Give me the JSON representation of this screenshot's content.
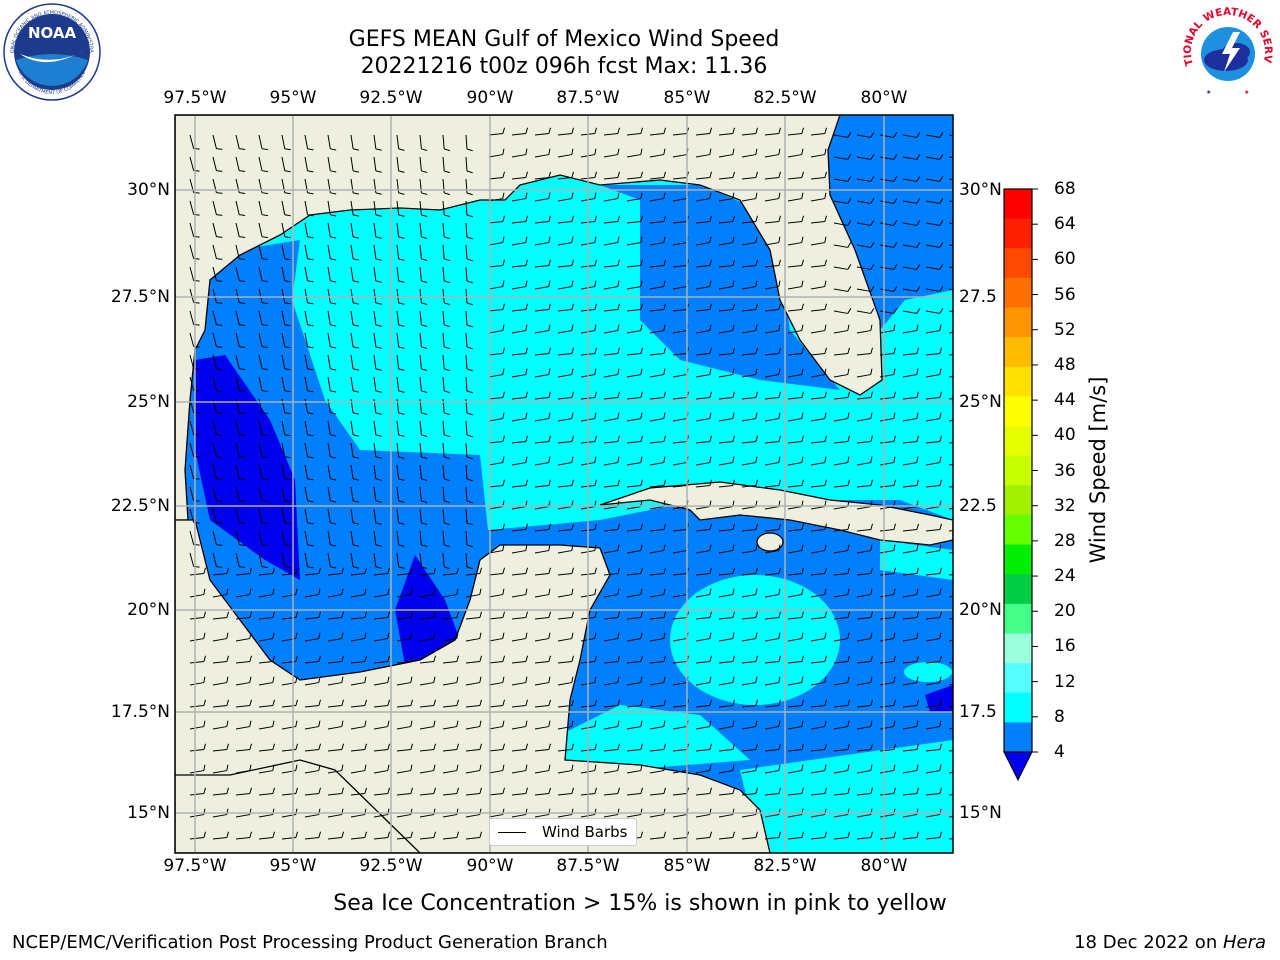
{
  "title": {
    "line1": "GEFS MEAN Gulf of Mexico Wind Speed",
    "line2": "20221216 t00z 096h fcst   Max: 11.36"
  },
  "logos": {
    "left": "NOAA",
    "left_ring_top": "NATIONAL OCEANIC AND ATMOSPHERIC ADMINISTRATION",
    "left_ring_bottom": "U.S. DEPARTMENT OF COMMERCE",
    "right_ring": "NATIONAL WEATHER SERVICE"
  },
  "map": {
    "lon_labels": [
      "97.5°W",
      "95°W",
      "92.5°W",
      "90°W",
      "87.5°W",
      "85°W",
      "82.5°W",
      "80°W"
    ],
    "lat_labels": [
      "30°N",
      "27.5°N",
      "25°N",
      "22.5°N",
      "20°N",
      "17.5°N",
      "15°N"
    ],
    "lat_labels_right": [
      "30°N",
      "27.5",
      "25°N",
      "22.5",
      "20°N",
      "17.5",
      "15°N"
    ],
    "land_color": "#efefdf",
    "ocean_colors": {
      "band_4_8": "#0080ff",
      "band_8_12": "#00ffff",
      "band_below_4": "#0000ee"
    }
  },
  "colorbar": {
    "label": "Wind Speed [m/s]",
    "ticks": [
      "68",
      "64",
      "60",
      "56",
      "52",
      "48",
      "44",
      "40",
      "36",
      "32",
      "28",
      "24",
      "20",
      "16",
      "12",
      "8",
      "4"
    ],
    "colors": [
      "#ff0000",
      "#ff2000",
      "#ff4a00",
      "#ff7000",
      "#ff9400",
      "#ffbb00",
      "#ffe000",
      "#ffff00",
      "#e6ff00",
      "#c8ff00",
      "#a0f000",
      "#66ff00",
      "#00ee00",
      "#00cc44",
      "#44ff88",
      "#99ffdd",
      "#55ffff",
      "#00ffff",
      "#0080ff"
    ],
    "extend_color": "#0000ee"
  },
  "legend": {
    "label": "Wind Barbs"
  },
  "ice_note": "Sea Ice Concentration > 15% is shown in pink to yellow",
  "footer": {
    "left": "NCEP/EMC/Verification Post Processing Product Generation Branch",
    "right_prefix": "18 Dec 2022 on ",
    "right_host": "Hera"
  }
}
